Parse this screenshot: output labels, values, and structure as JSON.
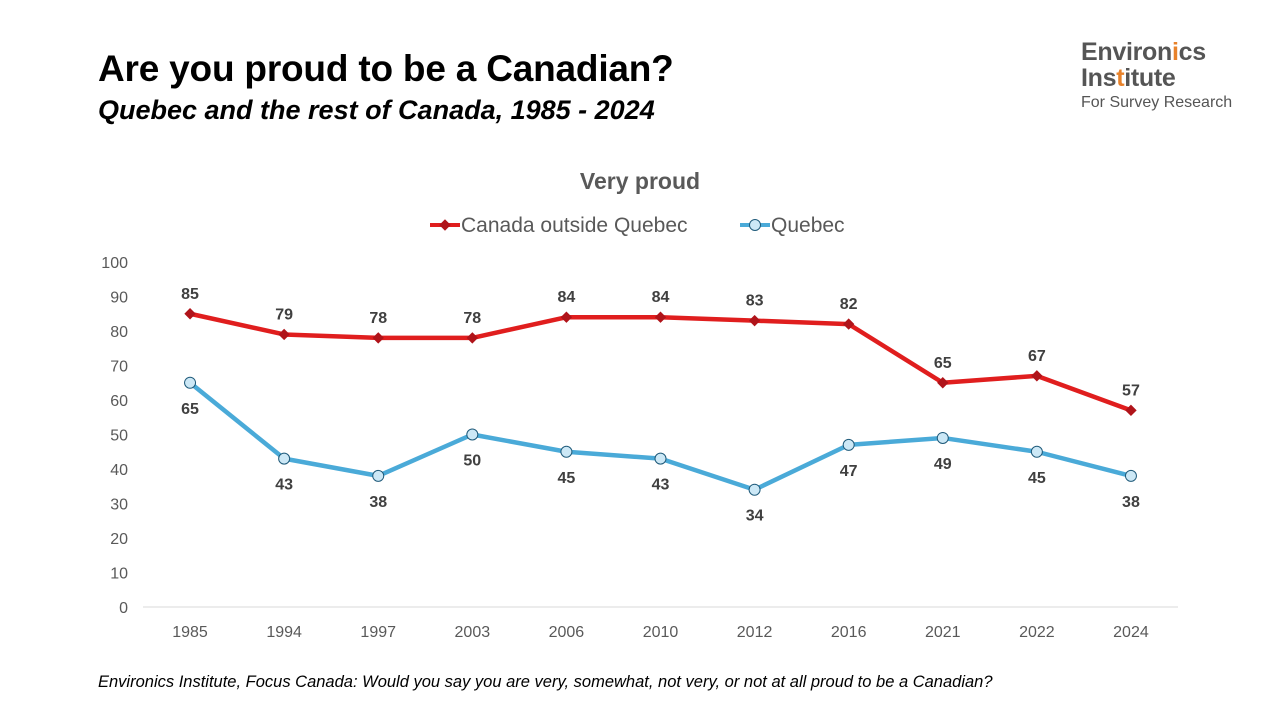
{
  "title": "Are you proud to be a Canadian?",
  "subtitle": "Quebec and the rest of Canada, 1985 - 2024",
  "logo": {
    "line1_pre": "Environ",
    "line1_hl": "i",
    "line1_post": "cs",
    "line2_pre": "Ins",
    "line2_hl": "t",
    "line2_post": "itute",
    "line3": "For Survey Research",
    "highlight_color": "#e8822a"
  },
  "footnote": "Environics Institute, Focus Canada: Would you say you are very, somewhat, not very, or not at all proud to be a Canadian?",
  "chart_data": {
    "type": "line",
    "title": "Very proud",
    "categories": [
      "1985",
      "1994",
      "1997",
      "2003",
      "2006",
      "2010",
      "2012",
      "2016",
      "2021",
      "2022",
      "2024"
    ],
    "series": [
      {
        "name": "Canada outside Quebec",
        "values": [
          85,
          79,
          78,
          78,
          84,
          84,
          83,
          82,
          65,
          67,
          57
        ],
        "color": "#e01e1e",
        "marker": "diamond",
        "label_position": "above"
      },
      {
        "name": "Quebec",
        "values": [
          65,
          43,
          38,
          50,
          45,
          43,
          34,
          47,
          49,
          45,
          38
        ],
        "color": "#4aaad8",
        "marker": "circle",
        "marker_fill": "#cce8f6",
        "label_position": "below"
      }
    ],
    "ylim": [
      0,
      100
    ],
    "yticks": [
      0,
      10,
      20,
      30,
      40,
      50,
      60,
      70,
      80,
      90,
      100
    ],
    "grid": false,
    "legend_position": "top-center"
  }
}
